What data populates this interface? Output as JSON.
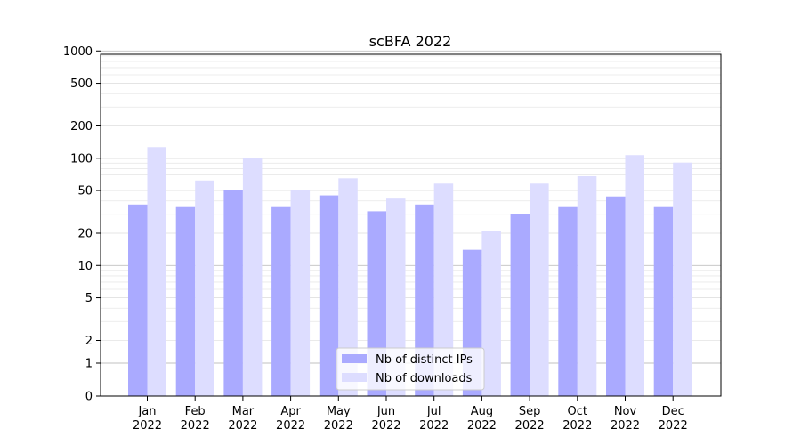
{
  "chart_data": {
    "type": "bar",
    "title": "scBFA 2022",
    "xlabel": "",
    "ylabel": "",
    "yscale": "symlog",
    "ylim": [
      0,
      1200
    ],
    "categories": [
      [
        "Jan",
        "2022"
      ],
      [
        "Feb",
        "2022"
      ],
      [
        "Mar",
        "2022"
      ],
      [
        "Apr",
        "2022"
      ],
      [
        "May",
        "2022"
      ],
      [
        "Jun",
        "2022"
      ],
      [
        "Jul",
        "2022"
      ],
      [
        "Aug",
        "2022"
      ],
      [
        "Sep",
        "2022"
      ],
      [
        "Oct",
        "2022"
      ],
      [
        "Nov",
        "2022"
      ],
      [
        "Dec",
        "2022"
      ]
    ],
    "yticks": [
      0,
      1,
      2,
      5,
      10,
      20,
      50,
      100,
      200,
      500,
      1000
    ],
    "series": [
      {
        "name": "Nb of distinct IPs",
        "color": "#aaaaff",
        "values": [
          37,
          35,
          51,
          35,
          45,
          32,
          37,
          14,
          30,
          35,
          44,
          35
        ]
      },
      {
        "name": "Nb of downloads",
        "color": "#ddddff",
        "values": [
          127,
          62,
          101,
          51,
          65,
          42,
          58,
          21,
          58,
          68,
          107,
          91
        ]
      }
    ],
    "grid": true,
    "legend": "lower-center"
  }
}
